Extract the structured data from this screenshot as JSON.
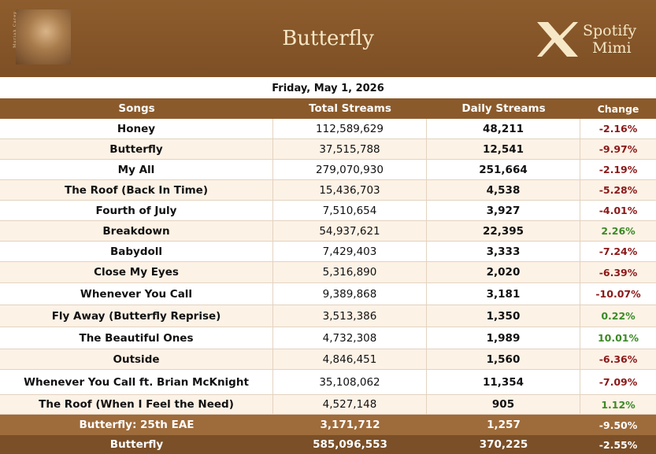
{
  "header": {
    "title": "Butterfly",
    "album_text": "Mariah Carey",
    "brand": [
      "Spotify",
      "Mimi"
    ]
  },
  "date": "Friday, May 1, 2026",
  "table": {
    "columns": [
      "Songs",
      "Total Streams",
      "Daily Streams",
      "Change"
    ],
    "rows": [
      [
        "Honey",
        "112,589,629",
        "48,211",
        "-2.16%"
      ],
      [
        "Butterfly",
        "37,515,788",
        "12,541",
        "-9.97%"
      ],
      [
        "My All",
        "279,070,930",
        "251,664",
        "-2.19%"
      ],
      [
        "The Roof (Back In Time)",
        "15,436,703",
        "4,538",
        "-5.28%"
      ],
      [
        "Fourth of July",
        "7,510,654",
        "3,927",
        "-4.01%"
      ],
      [
        "Breakdown",
        "54,937,621",
        "22,395",
        "2.26%"
      ],
      [
        "Babydoll",
        "7,429,403",
        "3,333",
        "-7.24%"
      ],
      [
        "Close My Eyes",
        "5,316,890",
        "2,020",
        "-6.39%"
      ],
      [
        "Whenever You Call",
        "9,389,868",
        "3,181",
        "-10.07%"
      ],
      [
        "Fly Away (Butterfly Reprise)",
        "3,513,386",
        "1,350",
        "0.22%"
      ],
      [
        "The Beautiful Ones",
        "4,732,308",
        "1,989",
        "10.01%"
      ],
      [
        "Outside",
        "4,846,451",
        "1,560",
        "-6.36%"
      ],
      [
        "Whenever You Call ft. Brian McKnight",
        "35,108,062",
        "11,354",
        "-7.09%"
      ],
      [
        "The Roof (When I Feel the Need)",
        "4,527,148",
        "905",
        "1.12%"
      ]
    ],
    "footer": [
      [
        "Butterfly: 25th EAE",
        "3,171,712",
        "1,257",
        "-9.50%"
      ],
      [
        "Butterfly",
        "585,096,553",
        "370,225",
        "-2.55%"
      ]
    ]
  }
}
